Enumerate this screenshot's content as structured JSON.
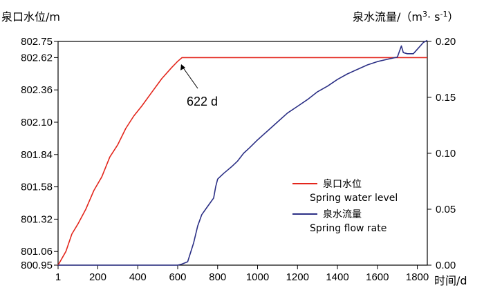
{
  "chart_data": {
    "type": "line",
    "x_label": "时间/d",
    "y_left_label": "泉口水位/m",
    "y_right_label": {
      "prefix": "泉水流量/（m",
      "sup1": "3",
      "mid": "· s",
      "sup2": "-1",
      "suffix": "）"
    },
    "x_range": [
      1,
      1850
    ],
    "x_ticks": [
      1,
      200,
      400,
      600,
      800,
      1000,
      1200,
      1400,
      1600,
      1800
    ],
    "y_left_range": [
      800.95,
      802.75
    ],
    "y_left_ticks": [
      800.95,
      801.06,
      801.32,
      801.58,
      801.84,
      802.1,
      802.36,
      802.62,
      802.75
    ],
    "y_left_tick_labels": [
      "800.95",
      "801.06",
      "801.32",
      "801.58",
      "801.84",
      "802.10",
      "802.36",
      "802.62",
      "802.75"
    ],
    "y_right_range": [
      0.0,
      0.2
    ],
    "y_right_ticks": [
      0.0,
      0.05,
      0.1,
      0.15,
      0.2
    ],
    "y_right_tick_labels": [
      "0.00",
      "0.05",
      "0.10",
      "0.15",
      "0.20"
    ],
    "grid": false,
    "legend_position": "lower-right",
    "annotation": {
      "text": "622 d",
      "x": 622
    },
    "series": [
      {
        "name": "泉口水位",
        "name_en": "Spring water level",
        "axis": "left",
        "color": "#e3261c",
        "x": [
          1,
          40,
          70,
          100,
          140,
          180,
          220,
          260,
          300,
          340,
          380,
          420,
          470,
          520,
          570,
          600,
          622,
          700,
          900,
          1100,
          1300,
          1500,
          1700,
          1850
        ],
        "y": [
          800.95,
          801.06,
          801.2,
          801.28,
          801.4,
          801.55,
          801.66,
          801.82,
          801.92,
          802.05,
          802.15,
          802.23,
          802.34,
          802.45,
          802.54,
          802.59,
          802.62,
          802.62,
          802.62,
          802.62,
          802.62,
          802.62,
          802.62,
          802.62
        ]
      },
      {
        "name": "泉水流量",
        "name_en": "Spring flow rate",
        "axis": "right",
        "color": "#2b2f85",
        "x": [
          1,
          600,
          622,
          650,
          680,
          700,
          720,
          740,
          760,
          780,
          790,
          800,
          830,
          850,
          870,
          900,
          930,
          960,
          1000,
          1050,
          1100,
          1150,
          1200,
          1250,
          1300,
          1350,
          1400,
          1450,
          1500,
          1550,
          1600,
          1650,
          1700,
          1720,
          1730,
          1750,
          1780,
          1800,
          1830,
          1850
        ],
        "y": [
          0.0,
          0.0,
          0.001,
          0.003,
          0.02,
          0.035,
          0.045,
          0.05,
          0.055,
          0.06,
          0.07,
          0.077,
          0.082,
          0.085,
          0.088,
          0.093,
          0.1,
          0.105,
          0.112,
          0.12,
          0.128,
          0.136,
          0.142,
          0.148,
          0.155,
          0.16,
          0.166,
          0.171,
          0.175,
          0.179,
          0.182,
          0.184,
          0.186,
          0.196,
          0.19,
          0.189,
          0.189,
          0.193,
          0.199,
          0.201
        ]
      }
    ]
  }
}
